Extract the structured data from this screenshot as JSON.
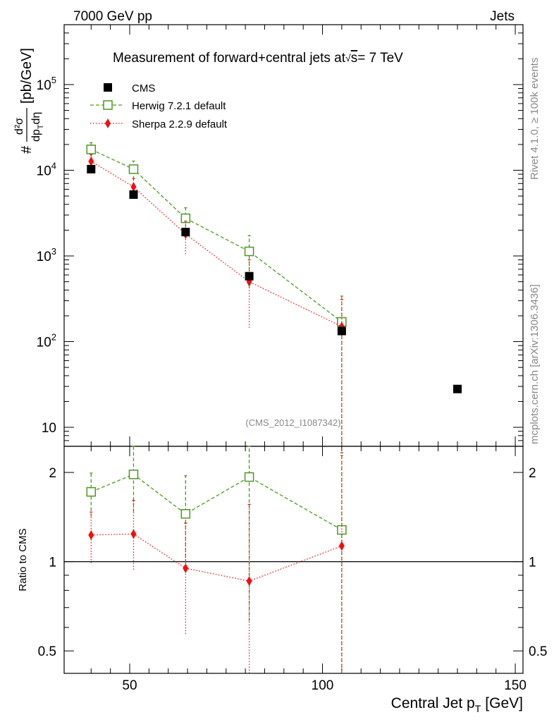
{
  "header": {
    "energy_label": "7000 GeV pp",
    "category_label": "Jets",
    "side_label_top": "Rivet 4.1.0, ≥ 100k events",
    "side_label_bottom": "mcplots.cern.ch [arXiv:1306.3436]"
  },
  "chart_data": [
    {
      "type": "line",
      "panel": "main",
      "title": "Measurement of forward+central jets at",
      "title_suffix": "= 7 TeV",
      "watermark": "(CMS_2012_I1087342)",
      "xlabel": "Central Jet p",
      "xlabel_sub": "T",
      "xlabel_unit": "[GeV]",
      "ylabel": {
        "prefix": "#",
        "numerator": "d²σ",
        "denominator": "dp",
        "denominator_sub": "T",
        "denominator_tail": "dη",
        "unit": "[pb/GeV]"
      },
      "yscale": "log",
      "xlim": [
        33,
        152
      ],
      "ylim": [
        6,
        500000
      ],
      "x_ticks": [
        50,
        100,
        150
      ],
      "y_ticks": [
        {
          "value": 10,
          "base": "10",
          "exp": ""
        },
        {
          "value": 100,
          "base": "10",
          "exp": "2"
        },
        {
          "value": 1000,
          "base": "10",
          "exp": "3"
        },
        {
          "value": 10000,
          "base": "10",
          "exp": "4"
        },
        {
          "value": 100000,
          "base": "10",
          "exp": "5"
        }
      ],
      "legend_position": "top-left",
      "series": [
        {
          "name": "CMS",
          "marker": "square-filled",
          "color": "#000000",
          "line": "none",
          "x": [
            40,
            51,
            64.5,
            81,
            105,
            135
          ],
          "y": [
            10300,
            5200,
            1900,
            580,
            133,
            28
          ],
          "err_low": [
            0,
            0,
            0,
            0,
            0,
            0
          ],
          "err_high": [
            0,
            0,
            0,
            0,
            0,
            0
          ]
        },
        {
          "name": "Herwig 7.2.1 default",
          "marker": "square-open",
          "color": "#4a9a1e",
          "line": "dashed",
          "x": [
            40,
            51,
            64.5,
            81,
            105
          ],
          "y": [
            17500,
            10300,
            2750,
            1130,
            170
          ],
          "err_low": [
            3500,
            2500,
            900,
            700,
            164
          ],
          "err_high": [
            3500,
            2500,
            900,
            600,
            170
          ]
        },
        {
          "name": "Sherpa 2.2.9 default",
          "marker": "diamond-filled",
          "color": "#ee1111",
          "line": "dotted",
          "x": [
            40,
            51,
            64.5,
            81,
            105
          ],
          "y": [
            12700,
            6400,
            1800,
            500,
            150
          ],
          "err_low": [
            2500,
            1600,
            750,
            355,
            145
          ],
          "err_high": [
            2500,
            1600,
            750,
            400,
            160
          ]
        }
      ]
    },
    {
      "type": "line",
      "panel": "ratio",
      "ylabel": "Ratio to CMS",
      "yscale": "log",
      "ylim": [
        0.42,
        2.45
      ],
      "y_ticks": [
        {
          "value": 0.5,
          "label": "0.5"
        },
        {
          "value": 1,
          "label": "1"
        },
        {
          "value": 2,
          "label": "2"
        }
      ],
      "reference_value": 1,
      "series": [
        {
          "name": "Herwig 7.2.1 default",
          "color": "#4a9a1e",
          "line": "dashed",
          "marker": "square-open",
          "x": [
            40,
            51,
            64.5,
            81,
            105
          ],
          "y": [
            1.72,
            1.97,
            1.45,
            1.93,
            1.28
          ],
          "err_low": [
            0.3,
            0.5,
            0.5,
            1.3,
            1.26
          ],
          "err_high": [
            0.27,
            0.6,
            0.5,
            0.6,
            1.0
          ]
        },
        {
          "name": "Sherpa 2.2.9 default",
          "color": "#ee1111",
          "line": "dotted",
          "marker": "diamond-filled",
          "x": [
            40,
            51,
            64.5,
            81,
            105
          ],
          "y": [
            1.23,
            1.24,
            0.95,
            0.86,
            1.13
          ],
          "err_low": [
            0.24,
            0.3,
            0.38,
            0.86,
            1.13
          ],
          "err_high": [
            0.24,
            0.37,
            0.4,
            0.7,
            1.2
          ]
        }
      ]
    }
  ]
}
